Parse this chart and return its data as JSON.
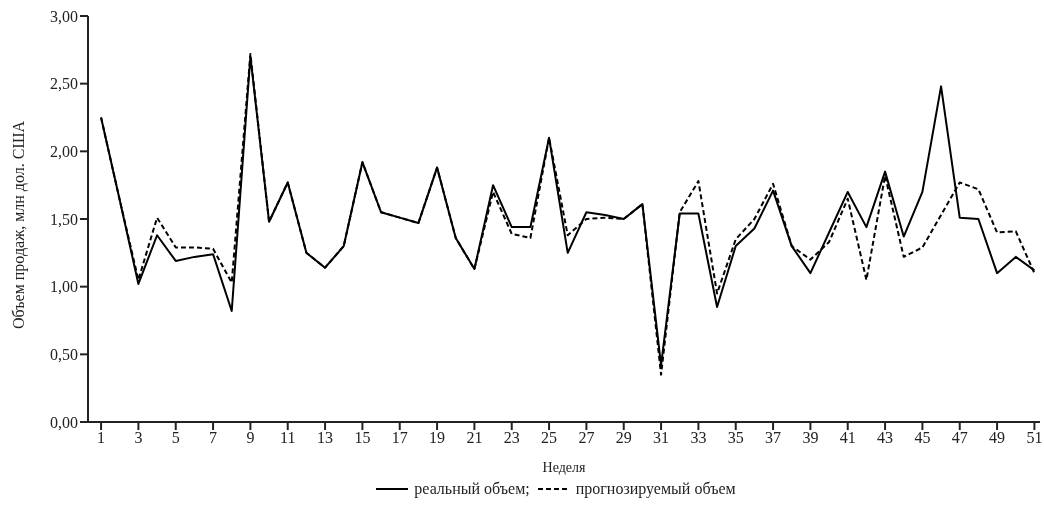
{
  "chart_data": {
    "type": "line",
    "xlabel": "Неделя",
    "ylabel": "Объем продаж, млн дол. США",
    "x": [
      1,
      2,
      3,
      4,
      5,
      6,
      7,
      8,
      9,
      10,
      11,
      12,
      13,
      14,
      15,
      16,
      17,
      18,
      19,
      20,
      21,
      22,
      23,
      24,
      25,
      26,
      27,
      28,
      29,
      30,
      31,
      32,
      33,
      34,
      35,
      36,
      37,
      38,
      39,
      40,
      41,
      42,
      43,
      44,
      45,
      46,
      47,
      48,
      49,
      50,
      51
    ],
    "series": [
      {
        "name": "реальный объем;",
        "color": "#000000",
        "line_style": "solid",
        "values": [
          2.25,
          1.64,
          1.02,
          1.38,
          1.19,
          1.22,
          1.24,
          0.82,
          2.7,
          1.48,
          1.77,
          1.25,
          1.14,
          1.3,
          1.92,
          1.55,
          1.51,
          1.47,
          1.88,
          1.36,
          1.13,
          1.75,
          1.44,
          1.44,
          2.1,
          1.25,
          1.55,
          1.53,
          1.5,
          1.61,
          0.42,
          1.54,
          1.54,
          0.85,
          1.3,
          1.43,
          1.71,
          1.3,
          1.1,
          1.4,
          1.7,
          1.44,
          1.85,
          1.37,
          1.7,
          2.48,
          1.51,
          1.5,
          1.1,
          1.22,
          1.12
        ]
      },
      {
        "name": "прогнозируемый объем",
        "color": "#000000",
        "line_style": "dashed",
        "values": [
          2.25,
          1.64,
          1.05,
          1.51,
          1.29,
          1.29,
          1.28,
          1.03,
          2.72,
          1.48,
          1.77,
          1.25,
          1.14,
          1.3,
          1.92,
          1.55,
          1.51,
          1.47,
          1.88,
          1.36,
          1.13,
          1.7,
          1.39,
          1.36,
          2.1,
          1.38,
          1.5,
          1.51,
          1.5,
          1.61,
          0.35,
          1.55,
          1.78,
          0.95,
          1.35,
          1.5,
          1.76,
          1.3,
          1.2,
          1.33,
          1.65,
          1.05,
          1.82,
          1.22,
          1.29,
          1.53,
          1.77,
          1.72,
          1.4,
          1.41,
          1.1
        ]
      }
    ],
    "xlim": [
      0.3,
      51.3
    ],
    "xticks": [
      1,
      3,
      5,
      7,
      9,
      11,
      13,
      15,
      17,
      19,
      21,
      23,
      25,
      27,
      29,
      31,
      33,
      35,
      37,
      39,
      41,
      43,
      45,
      47,
      49,
      51
    ],
    "ylim": [
      0,
      3
    ],
    "yticks": [
      {
        "value": 0,
        "label": "0,00"
      },
      {
        "value": 0.5,
        "label": "0,50"
      },
      {
        "value": 1,
        "label": "1,00"
      },
      {
        "value": 1.5,
        "label": "1,50"
      },
      {
        "value": 2,
        "label": "2,00"
      },
      {
        "value": 2.5,
        "label": "2,50"
      },
      {
        "value": 3,
        "label": "3,00"
      }
    ],
    "grid": false,
    "legend": "bottom",
    "marker": "none"
  }
}
